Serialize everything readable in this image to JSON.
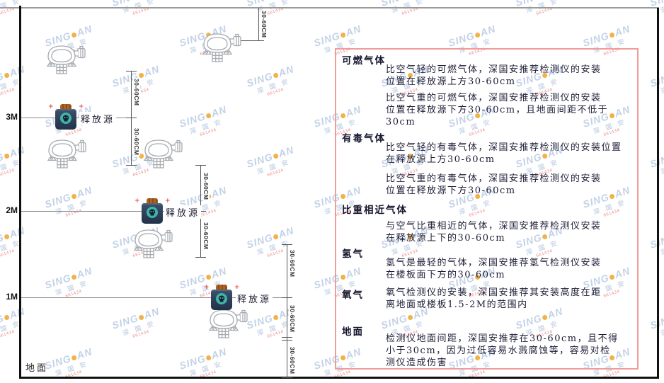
{
  "watermark": {
    "brand_left": "SING",
    "brand_right": "AN",
    "cn": "深 国 安",
    "code": "661434"
  },
  "diagram": {
    "heights": [
      "3M",
      "2M",
      "1M"
    ],
    "ground": "地面",
    "release_source": "释放源",
    "dimension": "30-60CM"
  },
  "panel": {
    "sections": [
      {
        "heading": "可燃气体",
        "paras": [
          "比空气轻的可燃气体，深国安推荐检测仪的安装\n位置在释放源上方30-60cm",
          "比空气重的可燃气体，深国安推荐检测仪的安装\n位置在释放源下方30-60cm，且地面间距不低于\n30cm"
        ]
      },
      {
        "heading": "有毒气体",
        "paras": [
          "比空气轻的有毒气体，深国安推荐检测仪的安装位置\n在释放源上方30-60cm",
          "比空气重的有毒气体，深国安推荐检测仪的安装\n位置在释放源下方30-60cm"
        ]
      },
      {
        "heading": "比重相近气体",
        "paras": [
          "与空气比重相近的气体，深国安推荐检测仪安装\n在释放源上下的30-60cm"
        ]
      },
      {
        "heading": "氢气",
        "paras": [
          "氢气是最轻的气体，深国安推荐氢气检测仪安装\n在楼板面下方的30-60cm"
        ]
      },
      {
        "heading": "氧气",
        "paras": [
          "氧气检测仪的安装，深国安推荐其安装高度在距\n离地面或楼板1.5-2M的范围内"
        ]
      },
      {
        "heading": "地面",
        "paras": [
          "检测仪地面间距，深国安推荐在30-60cm，且不得\n小于30cm，因为过低容易水溅腐蚀等，容易对检\n测仪造成伤害"
        ]
      }
    ]
  }
}
